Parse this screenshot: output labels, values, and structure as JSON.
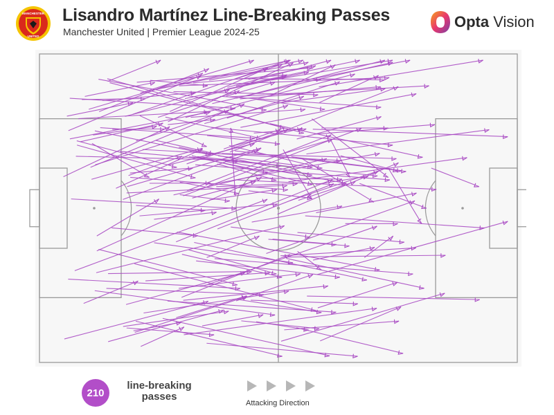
{
  "header": {
    "title": "Lisandro Martínez Line-Breaking Passes",
    "subtitle": "Manchester United | Premier League 2024-25",
    "crest_icon": "manchester-united-crest-icon",
    "crest_text_top": "MANCHESTER",
    "crest_text_bottom": "UNITED",
    "brand_logo_icon": "opta-vision-logo-icon",
    "brand_bold": "Opta",
    "brand_light": " Vision"
  },
  "colors": {
    "arrow": "#a94bc3",
    "badge": "#b24ec8",
    "pitch_line": "#9a9a9a",
    "pitch_fill": "#f7f7f7"
  },
  "footer": {
    "count": "210",
    "count_label_line1": "line-breaking",
    "count_label_line2": "passes",
    "direction_label": "Attacking Direction",
    "direction_icon": "triangle-right-icon"
  },
  "chart_data": {
    "type": "pass-map",
    "pitch": {
      "x_range": [
        0,
        100
      ],
      "y_range": [
        0,
        100
      ],
      "attacking_direction": "left-to-right"
    },
    "total_passes": 210,
    "passes": [
      {
        "x1": 6,
        "y1": 73,
        "x2": 42,
        "y2": 76
      },
      {
        "x1": 21,
        "y1": 20,
        "x2": 35,
        "y2": 30
      },
      {
        "x1": 11,
        "y1": 29,
        "x2": 23,
        "y2": 40
      },
      {
        "x1": 41,
        "y1": 46,
        "x2": 40,
        "y2": 24
      },
      {
        "x1": 27,
        "y1": 36,
        "x2": 45,
        "y2": 29
      },
      {
        "x1": 14,
        "y1": 76,
        "x2": 47,
        "y2": 78
      },
      {
        "x1": 19,
        "y1": 40,
        "x2": 52,
        "y2": 44
      },
      {
        "x1": 40,
        "y1": 30,
        "x2": 55,
        "y2": 24
      },
      {
        "x1": 59,
        "y1": 24,
        "x2": 73,
        "y2": 24
      },
      {
        "x1": 51,
        "y1": 31,
        "x2": 57,
        "y2": 47
      },
      {
        "x1": 57,
        "y1": 21,
        "x2": 73,
        "y2": 40
      },
      {
        "x1": 63,
        "y1": 33,
        "x2": 75,
        "y2": 38
      },
      {
        "x1": 61,
        "y1": 28,
        "x2": 65,
        "y2": 40
      },
      {
        "x1": 12,
        "y1": 59,
        "x2": 25,
        "y2": 47
      },
      {
        "x1": 35,
        "y1": 66,
        "x2": 46,
        "y2": 59
      },
      {
        "x1": 37,
        "y1": 43,
        "x2": 54,
        "y2": 42
      },
      {
        "x1": 55,
        "y1": 34,
        "x2": 70,
        "y2": 48
      },
      {
        "x1": 73,
        "y1": 37,
        "x2": 80,
        "y2": 55
      },
      {
        "x1": 67,
        "y1": 42,
        "x2": 81,
        "y2": 50
      },
      {
        "x1": 64,
        "y1": 55,
        "x2": 75,
        "y2": 55
      },
      {
        "x1": 68,
        "y1": 66,
        "x2": 74,
        "y2": 59
      },
      {
        "x1": 82,
        "y1": 37,
        "x2": 92,
        "y2": 43
      },
      {
        "x1": 54,
        "y1": 64,
        "x2": 59,
        "y2": 70
      }
    ],
    "generate_remaining": {
      "count": 187,
      "seed": 7,
      "x_start_range": [
        5,
        60
      ],
      "y_start_range": [
        8,
        95
      ],
      "length_range": [
        10,
        45
      ],
      "forward_bias": "rightward, slight drift toward top"
    }
  }
}
